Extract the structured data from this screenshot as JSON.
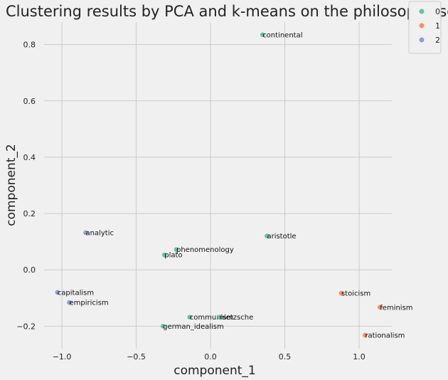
{
  "chart_data": {
    "type": "scatter",
    "title": "Clustering results by PCA and k-means on the philosophy schools",
    "xlabel": "component_1",
    "ylabel": "component_2",
    "xlim": [
      -1.12,
      1.22
    ],
    "ylim": [
      -0.28,
      0.88
    ],
    "xticks": [
      -1.0,
      -0.5,
      0.0,
      0.5,
      1.0
    ],
    "xtick_labels": [
      "−1.0",
      "−0.5",
      "0.0",
      "0.5",
      "1.0"
    ],
    "yticks": [
      -0.2,
      0.0,
      0.2,
      0.4,
      0.6,
      0.8
    ],
    "ytick_labels": [
      "−0.2",
      "0.0",
      "0.2",
      "0.4",
      "0.6",
      "0.8"
    ],
    "grid": true,
    "legend_position": "outside-top-right",
    "series": [
      {
        "name": "0",
        "color": "#66c2a5",
        "points": [
          {
            "label": "continental",
            "x": 0.35,
            "y": 0.835
          },
          {
            "label": "aristotle",
            "x": 0.38,
            "y": 0.12
          },
          {
            "label": "phenomenology",
            "x": -0.23,
            "y": 0.072
          },
          {
            "label": "plato",
            "x": -0.31,
            "y": 0.053
          },
          {
            "label": "communism",
            "x": -0.14,
            "y": -0.168
          },
          {
            "label": "nietzsche",
            "x": 0.06,
            "y": -0.168
          },
          {
            "label": "german_idealism",
            "x": -0.32,
            "y": -0.2
          }
        ]
      },
      {
        "name": "1",
        "color": "#fc8d62",
        "points": [
          {
            "label": "stoicism",
            "x": 0.88,
            "y": -0.083
          },
          {
            "label": "feminism",
            "x": 1.14,
            "y": -0.133
          },
          {
            "label": "rationalism",
            "x": 1.04,
            "y": -0.232
          }
        ]
      },
      {
        "name": "2",
        "color": "#8da0cb",
        "points": [
          {
            "label": "analytic",
            "x": -0.84,
            "y": 0.132
          },
          {
            "label": "capitalism",
            "x": -1.03,
            "y": -0.08
          },
          {
            "label": "empiricism",
            "x": -0.95,
            "y": -0.116
          }
        ]
      }
    ]
  }
}
